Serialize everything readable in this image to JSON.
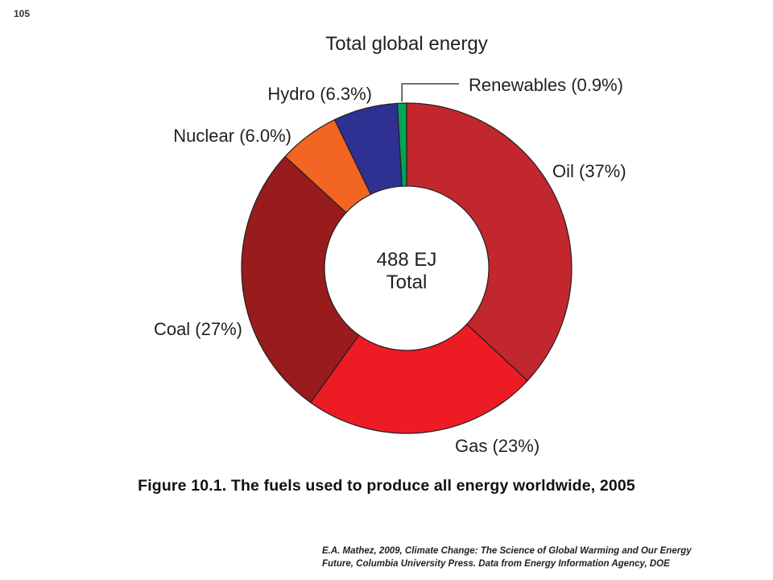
{
  "page_number": "105",
  "chart_data": {
    "type": "pie",
    "variant": "donut",
    "title": "Total global energy",
    "center_label": [
      "488 EJ",
      "Total"
    ],
    "start_angle_deg": 0,
    "direction": "clockwise",
    "slices": [
      {
        "name": "Oil",
        "value": 37,
        "label": "Oil (37%)",
        "color": "#c1272d"
      },
      {
        "name": "Gas",
        "value": 23,
        "label": "Gas (23%)",
        "color": "#ed1c24"
      },
      {
        "name": "Coal",
        "value": 27,
        "label": "Coal (27%)",
        "color": "#981b1e"
      },
      {
        "name": "Nuclear",
        "value": 6.0,
        "label": "Nuclear (6.0%)",
        "color": "#f26522"
      },
      {
        "name": "Hydro",
        "value": 6.3,
        "label": "Hydro (6.3%)",
        "color": "#2e3192"
      },
      {
        "name": "Renewables",
        "value": 0.9,
        "label": "Renewables (0.9%)",
        "color": "#00a651"
      }
    ]
  },
  "caption": "Figure 10.1.  The fuels used to produce all energy worldwide, 2005",
  "source_lines": [
    "E.A. Mathez, 2009, Climate Change: The Science of Global Warming and Our Energy",
    "Future, Columbia University Press. Data from Energy Information Agency, DOE"
  ]
}
